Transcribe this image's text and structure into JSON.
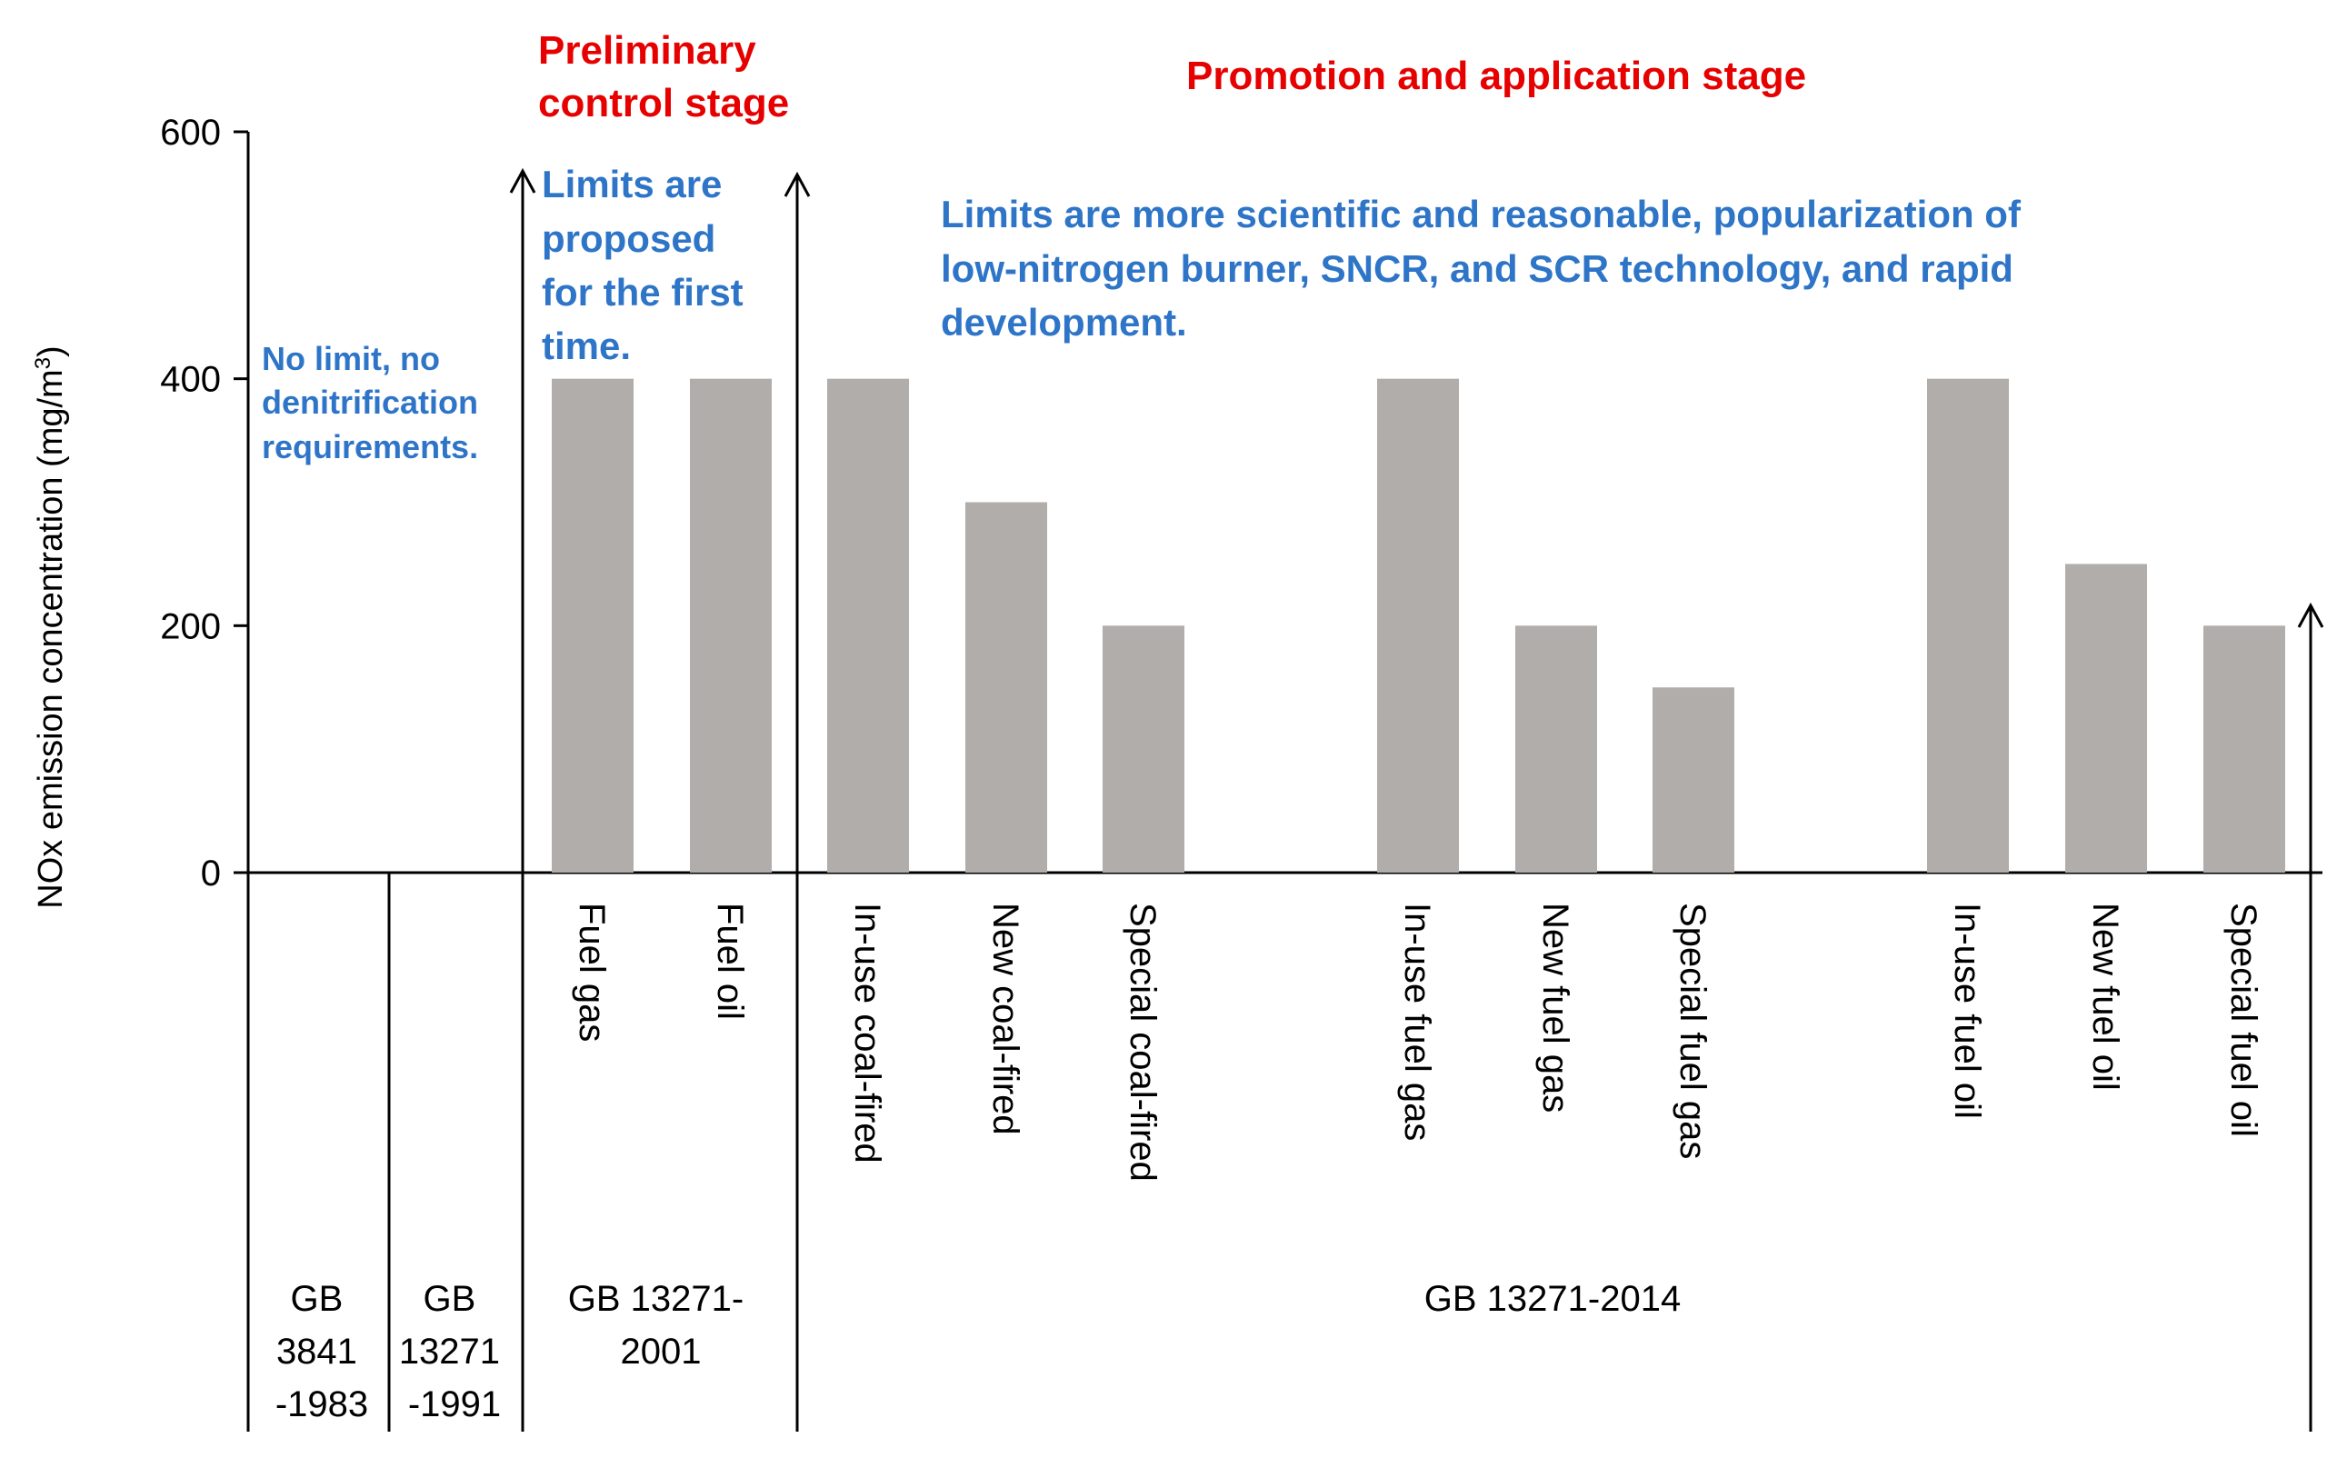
{
  "chart_data": {
    "type": "bar",
    "ylabel_main": "NOx emission concentration (mg/m",
    "ylabel_sup": "3",
    "ylabel_close": ")",
    "ylim": [
      0,
      600
    ],
    "yticks": [
      "0",
      "200",
      "400",
      "600"
    ],
    "categories": [
      "Fuel gas",
      "Fuel oil",
      "In-use coal-fired",
      "New coal-fired",
      "Special coal-fired",
      "In-use fuel gas",
      "New fuel gas",
      "Special fuel gas",
      "In-use fuel oil",
      "New fuel oil",
      "Special fuel oil"
    ],
    "values": [
      400,
      400,
      400,
      300,
      200,
      400,
      200,
      150,
      400,
      250,
      200
    ],
    "bar_color": "#b1adab",
    "standards": [
      {
        "lines": [
          "GB",
          "3841",
          "-1983"
        ]
      },
      {
        "lines": [
          "GB",
          "13271",
          "-1991"
        ]
      },
      {
        "lines": [
          "GB 13271-",
          "2001"
        ]
      },
      {
        "lines": [
          "GB 13271-2014"
        ]
      }
    ],
    "stages": {
      "preliminary": [
        "Preliminary",
        "control stage"
      ],
      "promotion": "Promotion and application stage"
    },
    "notes": {
      "no_limit": [
        "No limit, no",
        "denitrification",
        "requirements."
      ],
      "first_time": [
        "Limits are",
        "proposed",
        "for the first",
        "time."
      ],
      "scientific": [
        "Limits are more scientific and reasonable, popularization of",
        "low-nitrogen burner, SNCR, and SCR technology, and rapid",
        "development."
      ]
    },
    "colors": {
      "stage": "#e60000",
      "note": "#2e75c8",
      "axis": "#000000"
    }
  }
}
